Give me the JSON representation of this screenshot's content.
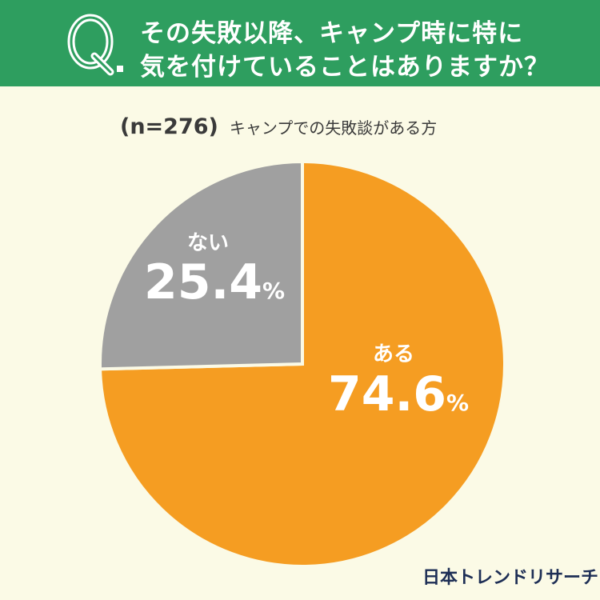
{
  "question": {
    "mark": "Q",
    "line1": "その失敗以降、キャンプ時に特に",
    "line2": "気を付けていることはありますか？"
  },
  "subtitle": {
    "sample": "(n=276)",
    "text": "キャンプでの失敗談がある方"
  },
  "chart_data": {
    "type": "pie",
    "slices": [
      {
        "label": "ある",
        "value": 74.6,
        "value_text": "74.6",
        "unit": "%",
        "color": "#f59d22"
      },
      {
        "label": "ない",
        "value": 25.4,
        "value_text": "25.4",
        "unit": "%",
        "color": "#a0a0a0"
      }
    ],
    "start": "12 o'clock, clockwise"
  },
  "brand": "日本トレンドリサーチ",
  "colors": {
    "header": "#2e9e5f",
    "background": "#fbfae6",
    "separator": "#fbfae6"
  }
}
